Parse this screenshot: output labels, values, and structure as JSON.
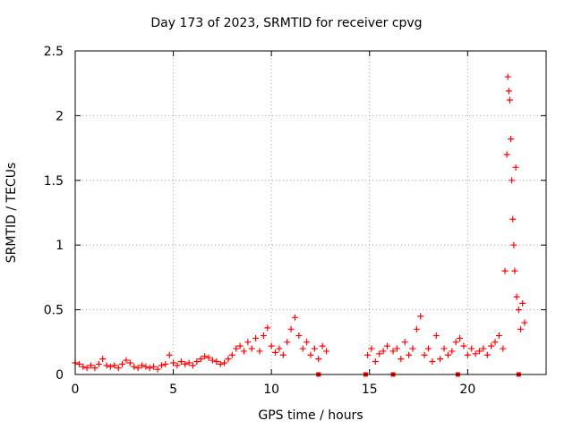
{
  "chart_data": {
    "type": "scatter",
    "title": "Day 173 of 2023, SRMTID for receiver cpvg",
    "xlabel": "GPS time / hours",
    "ylabel": "SRMTID / TECUs",
    "xlim": [
      0,
      24
    ],
    "ylim": [
      0,
      2.5
    ],
    "xticks": [
      0,
      5,
      10,
      15,
      20
    ],
    "yticks": [
      0,
      0.5,
      1,
      1.5,
      2,
      2.5
    ],
    "ytick_labels": [
      "0",
      "0.5",
      "1",
      "1.5",
      "2",
      "2.5"
    ],
    "grid": true,
    "marker": "+",
    "color": "#ff0000",
    "series": [
      {
        "name": "SRMTID",
        "points": [
          [
            0.0,
            0.09
          ],
          [
            0.2,
            0.08
          ],
          [
            0.4,
            0.06
          ],
          [
            0.6,
            0.05
          ],
          [
            0.8,
            0.07
          ],
          [
            1.0,
            0.05
          ],
          [
            1.2,
            0.08
          ],
          [
            1.4,
            0.12
          ],
          [
            1.6,
            0.07
          ],
          [
            1.8,
            0.06
          ],
          [
            2.0,
            0.07
          ],
          [
            2.2,
            0.05
          ],
          [
            2.4,
            0.08
          ],
          [
            2.6,
            0.11
          ],
          [
            2.8,
            0.09
          ],
          [
            3.0,
            0.06
          ],
          [
            3.2,
            0.05
          ],
          [
            3.4,
            0.07
          ],
          [
            3.6,
            0.06
          ],
          [
            3.8,
            0.05
          ],
          [
            4.0,
            0.06
          ],
          [
            4.2,
            0.04
          ],
          [
            4.4,
            0.07
          ],
          [
            4.6,
            0.08
          ],
          [
            4.8,
            0.15
          ],
          [
            5.0,
            0.09
          ],
          [
            5.2,
            0.07
          ],
          [
            5.4,
            0.1
          ],
          [
            5.6,
            0.08
          ],
          [
            5.8,
            0.09
          ],
          [
            6.0,
            0.07
          ],
          [
            6.2,
            0.1
          ],
          [
            6.4,
            0.12
          ],
          [
            6.6,
            0.14
          ],
          [
            6.8,
            0.13
          ],
          [
            7.0,
            0.11
          ],
          [
            7.2,
            0.1
          ],
          [
            7.4,
            0.08
          ],
          [
            7.6,
            0.09
          ],
          [
            7.8,
            0.12
          ],
          [
            8.0,
            0.15
          ],
          [
            8.2,
            0.2
          ],
          [
            8.4,
            0.22
          ],
          [
            8.6,
            0.18
          ],
          [
            8.8,
            0.25
          ],
          [
            9.0,
            0.2
          ],
          [
            9.2,
            0.28
          ],
          [
            9.4,
            0.18
          ],
          [
            9.6,
            0.3
          ],
          [
            9.8,
            0.36
          ],
          [
            10.0,
            0.22
          ],
          [
            10.2,
            0.17
          ],
          [
            10.4,
            0.2
          ],
          [
            10.6,
            0.15
          ],
          [
            10.8,
            0.25
          ],
          [
            11.0,
            0.35
          ],
          [
            11.2,
            0.44
          ],
          [
            11.4,
            0.3
          ],
          [
            11.6,
            0.2
          ],
          [
            11.8,
            0.25
          ],
          [
            12.0,
            0.15
          ],
          [
            12.2,
            0.2
          ],
          [
            12.4,
            0.12
          ],
          [
            12.6,
            0.22
          ],
          [
            12.8,
            0.18
          ],
          [
            14.9,
            0.15
          ],
          [
            15.1,
            0.2
          ],
          [
            15.3,
            0.1
          ],
          [
            15.5,
            0.16
          ],
          [
            15.7,
            0.18
          ],
          [
            15.9,
            0.22
          ],
          [
            16.2,
            0.18
          ],
          [
            16.4,
            0.2
          ],
          [
            16.6,
            0.12
          ],
          [
            16.8,
            0.25
          ],
          [
            17.0,
            0.15
          ],
          [
            17.2,
            0.2
          ],
          [
            17.4,
            0.35
          ],
          [
            17.6,
            0.45
          ],
          [
            17.8,
            0.15
          ],
          [
            18.0,
            0.2
          ],
          [
            18.2,
            0.1
          ],
          [
            18.4,
            0.3
          ],
          [
            18.6,
            0.12
          ],
          [
            18.8,
            0.2
          ],
          [
            19.0,
            0.15
          ],
          [
            19.2,
            0.18
          ],
          [
            19.4,
            0.25
          ],
          [
            19.6,
            0.28
          ],
          [
            19.8,
            0.22
          ],
          [
            20.0,
            0.15
          ],
          [
            20.2,
            0.2
          ],
          [
            20.4,
            0.16
          ],
          [
            20.6,
            0.18
          ],
          [
            20.8,
            0.2
          ],
          [
            21.0,
            0.15
          ],
          [
            21.2,
            0.22
          ],
          [
            21.4,
            0.25
          ],
          [
            21.6,
            0.3
          ],
          [
            21.8,
            0.2
          ],
          [
            21.9,
            0.8
          ],
          [
            22.0,
            1.7
          ],
          [
            22.05,
            2.3
          ],
          [
            22.1,
            2.19
          ],
          [
            22.15,
            2.12
          ],
          [
            22.2,
            1.82
          ],
          [
            22.25,
            1.5
          ],
          [
            22.3,
            1.2
          ],
          [
            22.35,
            1.0
          ],
          [
            22.4,
            0.8
          ],
          [
            22.45,
            1.6
          ],
          [
            22.5,
            0.6
          ],
          [
            22.6,
            0.5
          ],
          [
            22.7,
            0.35
          ],
          [
            22.8,
            0.55
          ],
          [
            22.9,
            0.4
          ]
        ]
      }
    ],
    "zero_markers_x": [
      12.4,
      14.8,
      16.2,
      19.5,
      22.6
    ]
  }
}
